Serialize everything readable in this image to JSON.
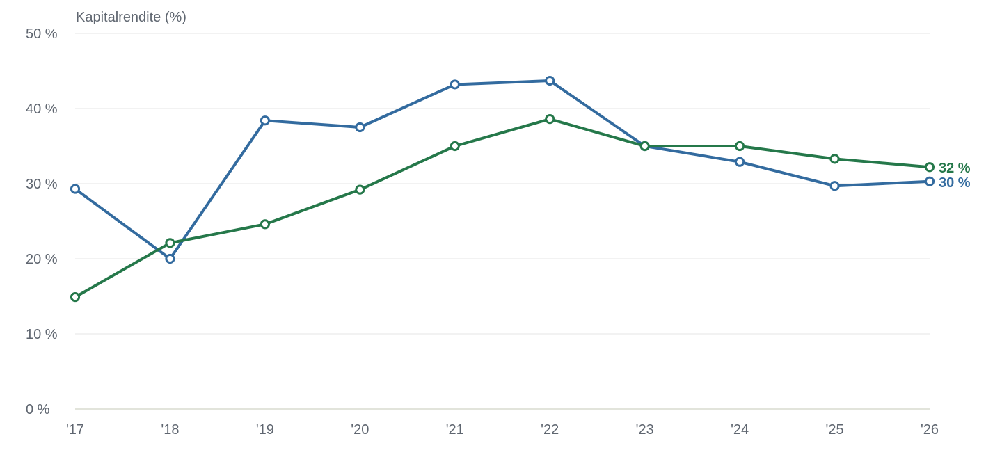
{
  "chart_data": {
    "type": "line",
    "title": "",
    "xlabel": "",
    "ylabel": "Kapitalrendite (%)",
    "categories": [
      "'17",
      "'18",
      "'19",
      "'20",
      "'21",
      "'22",
      "'23",
      "'24",
      "'25",
      "'26"
    ],
    "y_ticks": [
      {
        "value": 0,
        "label": "0 %"
      },
      {
        "value": 10,
        "label": "10 %"
      },
      {
        "value": 20,
        "label": "20 %"
      },
      {
        "value": 30,
        "label": "30 %"
      },
      {
        "value": 40,
        "label": "40 %"
      },
      {
        "value": 50,
        "label": "50 %"
      }
    ],
    "ylim": [
      0,
      50
    ],
    "grid": true,
    "legend": "none",
    "series": [
      {
        "key": "blue",
        "color": "#336b9f",
        "values": [
          29.3,
          20.0,
          38.4,
          37.5,
          43.2,
          43.7,
          35.0,
          32.9,
          29.7,
          30.3
        ],
        "end_label": "30 %"
      },
      {
        "key": "green",
        "color": "#25784a",
        "values": [
          14.9,
          22.1,
          24.6,
          29.2,
          35.0,
          38.6,
          35.0,
          35.0,
          33.3,
          32.2
        ],
        "end_label": "32 %"
      }
    ]
  }
}
